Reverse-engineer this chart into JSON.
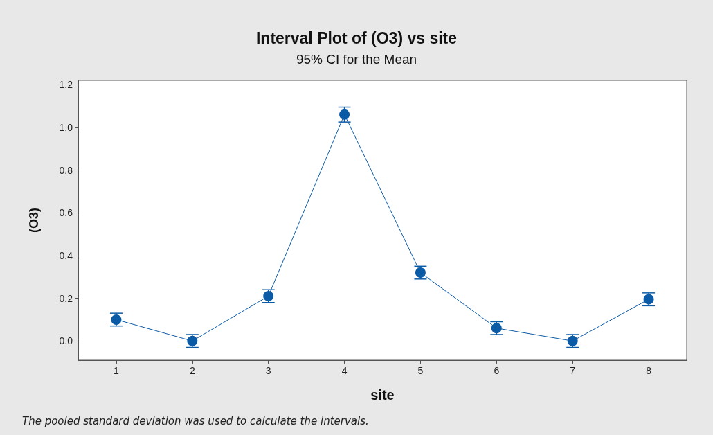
{
  "chart_data": {
    "type": "line",
    "title": "Interval Plot of (O3) vs site",
    "subtitle": "95% CI for the Mean",
    "xlabel": "site",
    "ylabel": "(O3)",
    "categories": [
      "1",
      "2",
      "3",
      "4",
      "5",
      "6",
      "7",
      "8"
    ],
    "series": [
      {
        "color": "#0b5aa6",
        "values": [
          0.1,
          0.0,
          0.21,
          1.06,
          0.32,
          0.06,
          0.0,
          0.195
        ],
        "errors": [
          0.03,
          0.03,
          0.03,
          0.035,
          0.03,
          0.03,
          0.03,
          0.03
        ]
      }
    ],
    "ylim": [
      -0.09,
      1.22
    ],
    "yticks": [
      {
        "value": 0,
        "label": "0.0"
      },
      0.2,
      0.4,
      0.6,
      0.8,
      {
        "value": 1,
        "label": "1.0"
      },
      1.2
    ],
    "grid": false,
    "marker": "circle",
    "line_style": "solid",
    "annotations": [
      "The pooled standard deviation was used to calculate the intervals."
    ]
  }
}
